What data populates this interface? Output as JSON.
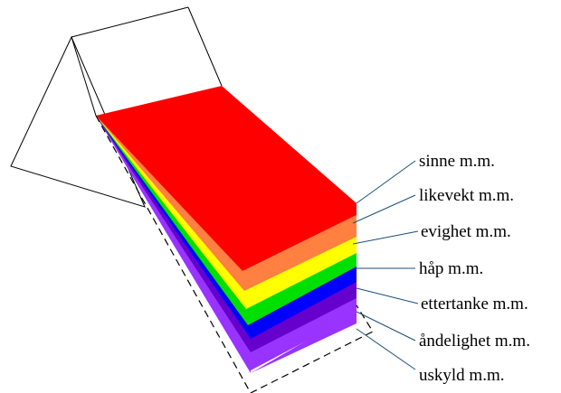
{
  "labels": [
    {
      "text": "sinne m.m.",
      "color": "#ff0000"
    },
    {
      "text": "likevekt m.m.",
      "color": "#ff8040"
    },
    {
      "text": "evighet m.m.",
      "color": "#ffff00"
    },
    {
      "text": "håp m.m.",
      "color": "#00e000"
    },
    {
      "text": "ettertanke m.m.",
      "color": "#0000ff"
    },
    {
      "text": "åndelighet m.m.",
      "color": "#6600cc"
    },
    {
      "text": "uskyld m.m.",
      "color": "#9933ff"
    }
  ],
  "leader_color": "#1f4e79"
}
